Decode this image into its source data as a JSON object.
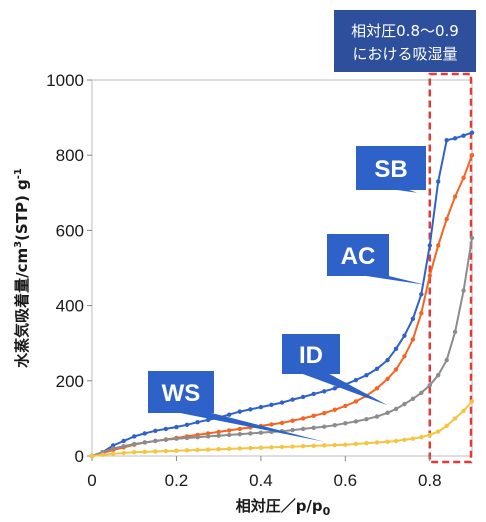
{
  "chart_data": {
    "type": "line",
    "xlabel": "相対圧／p/p",
    "xlabel_sub": "0",
    "ylabel_pre": "水蒸気吸着量/cm",
    "ylabel_sup1": "3",
    "ylabel_mid": "(STP) g",
    "ylabel_sup2": "-1",
    "xlim": [
      0,
      0.9
    ],
    "ylim": [
      0,
      1000
    ],
    "xticks": [
      0,
      0.2,
      0.4,
      0.6,
      0.8
    ],
    "xtick_labels": [
      "0",
      "0.2",
      "0.4",
      "0.6",
      "0.8"
    ],
    "yticks": [
      0,
      200,
      400,
      600,
      800,
      1000
    ],
    "ytick_labels": [
      "0",
      "200",
      "400",
      "600",
      "800",
      "1000"
    ],
    "grid": false,
    "highlight": {
      "x_range": [
        0.8,
        0.9
      ],
      "label_lines": [
        "相対圧0.8～0.9",
        "における吸湿量"
      ],
      "color": "#e53935"
    },
    "series": [
      {
        "name": "SB",
        "color": "#2f62c8",
        "x": [
          0.0,
          0.025,
          0.05,
          0.075,
          0.1,
          0.125,
          0.15,
          0.175,
          0.2,
          0.225,
          0.25,
          0.275,
          0.3,
          0.325,
          0.35,
          0.375,
          0.4,
          0.425,
          0.45,
          0.475,
          0.5,
          0.525,
          0.55,
          0.575,
          0.6,
          0.625,
          0.65,
          0.675,
          0.7,
          0.72,
          0.74,
          0.76,
          0.78,
          0.8,
          0.82,
          0.84,
          0.86,
          0.88,
          0.9
        ],
        "y": [
          0,
          10,
          28,
          40,
          52,
          60,
          67,
          72,
          77,
          83,
          90,
          96,
          102,
          110,
          118,
          124,
          130,
          136,
          142,
          150,
          157,
          165,
          172,
          180,
          190,
          202,
          215,
          232,
          255,
          285,
          320,
          365,
          430,
          560,
          730,
          840,
          845,
          852,
          860
        ]
      },
      {
        "name": "AC",
        "color": "#f26522",
        "x": [
          0.0,
          0.025,
          0.05,
          0.075,
          0.1,
          0.125,
          0.15,
          0.175,
          0.2,
          0.225,
          0.25,
          0.275,
          0.3,
          0.325,
          0.35,
          0.375,
          0.4,
          0.425,
          0.45,
          0.475,
          0.5,
          0.525,
          0.55,
          0.575,
          0.6,
          0.625,
          0.65,
          0.675,
          0.7,
          0.72,
          0.74,
          0.76,
          0.78,
          0.8,
          0.82,
          0.84,
          0.86,
          0.88,
          0.9
        ],
        "y": [
          0,
          8,
          16,
          23,
          30,
          36,
          40,
          44,
          48,
          52,
          56,
          60,
          64,
          68,
          72,
          76,
          80,
          84,
          88,
          94,
          100,
          107,
          114,
          123,
          133,
          145,
          160,
          180,
          205,
          230,
          265,
          310,
          380,
          480,
          560,
          630,
          690,
          740,
          800
        ]
      },
      {
        "name": "ID",
        "color": "#8c8c8c",
        "x": [
          0.0,
          0.025,
          0.05,
          0.075,
          0.1,
          0.125,
          0.15,
          0.175,
          0.2,
          0.225,
          0.25,
          0.275,
          0.3,
          0.325,
          0.35,
          0.375,
          0.4,
          0.425,
          0.45,
          0.475,
          0.5,
          0.525,
          0.55,
          0.575,
          0.6,
          0.625,
          0.65,
          0.675,
          0.7,
          0.72,
          0.74,
          0.76,
          0.78,
          0.8,
          0.82,
          0.84,
          0.86,
          0.88,
          0.9
        ],
        "y": [
          0,
          10,
          20,
          26,
          32,
          36,
          40,
          43,
          46,
          48,
          50,
          52,
          54,
          56,
          58,
          60,
          62,
          64,
          66,
          69,
          72,
          75,
          78,
          82,
          87,
          92,
          98,
          105,
          115,
          125,
          138,
          152,
          168,
          188,
          215,
          255,
          330,
          440,
          580
        ]
      },
      {
        "name": "WS",
        "color": "#f5c542",
        "x": [
          0.0,
          0.025,
          0.05,
          0.075,
          0.1,
          0.125,
          0.15,
          0.175,
          0.2,
          0.225,
          0.25,
          0.275,
          0.3,
          0.325,
          0.35,
          0.375,
          0.4,
          0.425,
          0.45,
          0.475,
          0.5,
          0.525,
          0.55,
          0.575,
          0.6,
          0.625,
          0.65,
          0.675,
          0.7,
          0.72,
          0.74,
          0.76,
          0.78,
          0.8,
          0.82,
          0.84,
          0.86,
          0.88,
          0.9
        ],
        "y": [
          0,
          3,
          6,
          8,
          10,
          11,
          12,
          13,
          14,
          15,
          16,
          17,
          18,
          19,
          20,
          21,
          22,
          23,
          24,
          25,
          26,
          27,
          28,
          29,
          30,
          32,
          34,
          36,
          38,
          40,
          43,
          46,
          50,
          56,
          65,
          80,
          100,
          120,
          145
        ]
      }
    ],
    "series_labels": [
      {
        "text": "SB",
        "color": "#2f62c8",
        "target": [
          0.77,
          700
        ]
      },
      {
        "text": "AC",
        "color": "#2f62c8",
        "target": [
          0.79,
          455
        ]
      },
      {
        "text": "ID",
        "color": "#2f62c8",
        "target": [
          0.7,
          135
        ]
      },
      {
        "text": "WS",
        "color": "#2f62c8",
        "target": [
          0.55,
          38
        ]
      }
    ]
  }
}
